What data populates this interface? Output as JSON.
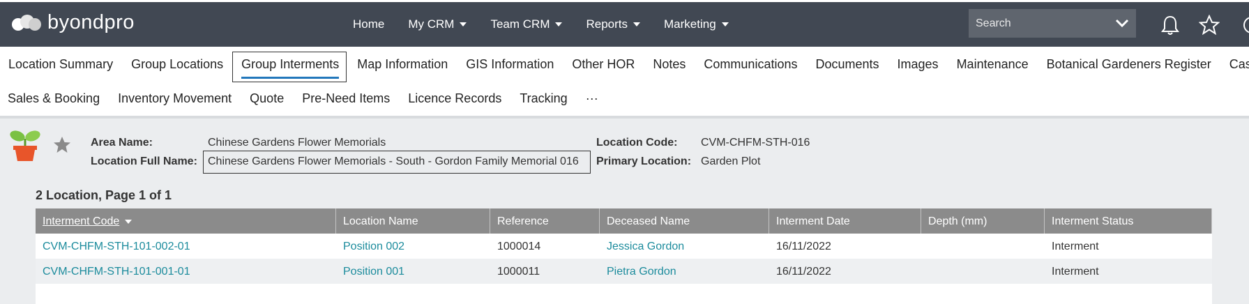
{
  "header": {
    "logo": "byondpro",
    "nav": [
      "Home",
      "My CRM",
      "Team CRM",
      "Reports",
      "Marketing"
    ],
    "nav_dropdowns": [
      false,
      true,
      true,
      true,
      true
    ],
    "search_placeholder": "Search"
  },
  "tabs": {
    "row1": [
      "Location Summary",
      "Group Locations",
      "Group Interments",
      "Map Information",
      "GIS Information",
      "Other HOR",
      "Notes",
      "Communications",
      "Documents",
      "Images",
      "Maintenance",
      "Botanical Gardeners Register",
      "Cases"
    ],
    "row2": [
      "Sales & Booking",
      "Inventory Movement",
      "Quote",
      "Pre-Need Items",
      "Licence Records",
      "Tracking",
      "···"
    ],
    "active": "Group Interments"
  },
  "info": {
    "area_name_label": "Area Name:",
    "area_name": "Chinese Gardens Flower Memorials",
    "full_name_label": "Location Full Name:",
    "full_name": "Chinese Gardens Flower Memorials - South - Gordon Family Memorial 016",
    "code_label": "Location Code:",
    "code": "CVM-CHFM-STH-016",
    "primary_label": "Primary Location:",
    "primary": "Garden Plot"
  },
  "table": {
    "caption": "2 Location, Page 1 of 1",
    "columns": [
      "Interment Code",
      "Location Name",
      "Reference",
      "Deceased Name",
      "Interment Date",
      "Depth (mm)",
      "Interment Status"
    ],
    "link_columns": [
      0,
      1,
      3
    ],
    "rows": [
      [
        "CVM-CHFM-STH-101-002-01",
        "Position 002",
        "1000014",
        "Jessica Gordon",
        "16/11/2022",
        null,
        "Interment"
      ],
      [
        "CVM-CHFM-STH-101-001-01",
        "Position 001",
        "1000011",
        "Pietra Gordon",
        "16/11/2022",
        null,
        "Interment"
      ]
    ]
  }
}
